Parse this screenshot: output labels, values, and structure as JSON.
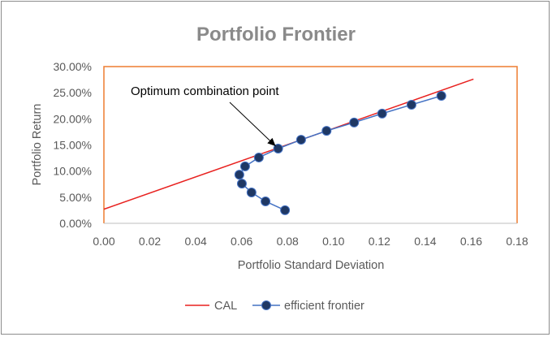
{
  "chart_data": {
    "type": "line",
    "title": "Portfolio Frontier",
    "xlabel": "Portfolio Standard Deviation",
    "ylabel": "Portfolio Return",
    "xlim": [
      0,
      0.18
    ],
    "ylim": [
      0,
      0.3
    ],
    "x_ticks": [
      "0.00",
      "0.02",
      "0.04",
      "0.06",
      "0.08",
      "0.10",
      "0.12",
      "0.14",
      "0.16",
      "0.18"
    ],
    "y_ticks": [
      "0.00%",
      "5.00%",
      "10.00%",
      "15.00%",
      "20.00%",
      "25.00%",
      "30.00%"
    ],
    "grid": false,
    "legend_position": "bottom",
    "series": [
      {
        "name": "CAL",
        "color": "#e8211f",
        "style": "line",
        "points": [
          [
            0.0,
            0.027
          ],
          [
            0.161,
            0.276
          ]
        ]
      },
      {
        "name": "efficient frontier",
        "color": "#4472c4",
        "marker_color": "#1f3864",
        "style": "line-markers",
        "points": [
          [
            0.0789,
            0.025
          ],
          [
            0.0704,
            0.042
          ],
          [
            0.0643,
            0.059
          ],
          [
            0.0601,
            0.076
          ],
          [
            0.059,
            0.093
          ],
          [
            0.0615,
            0.109
          ],
          [
            0.0675,
            0.126
          ],
          [
            0.0759,
            0.143
          ],
          [
            0.0859,
            0.16
          ],
          [
            0.097,
            0.177
          ],
          [
            0.109,
            0.193
          ],
          [
            0.1212,
            0.21
          ],
          [
            0.134,
            0.227
          ],
          [
            0.147,
            0.244
          ]
        ]
      }
    ],
    "annotation": {
      "text": "Optimum combination point",
      "points_to": [
        0.0759,
        0.143
      ]
    },
    "plot_area_border_color": "#ed7d31"
  }
}
